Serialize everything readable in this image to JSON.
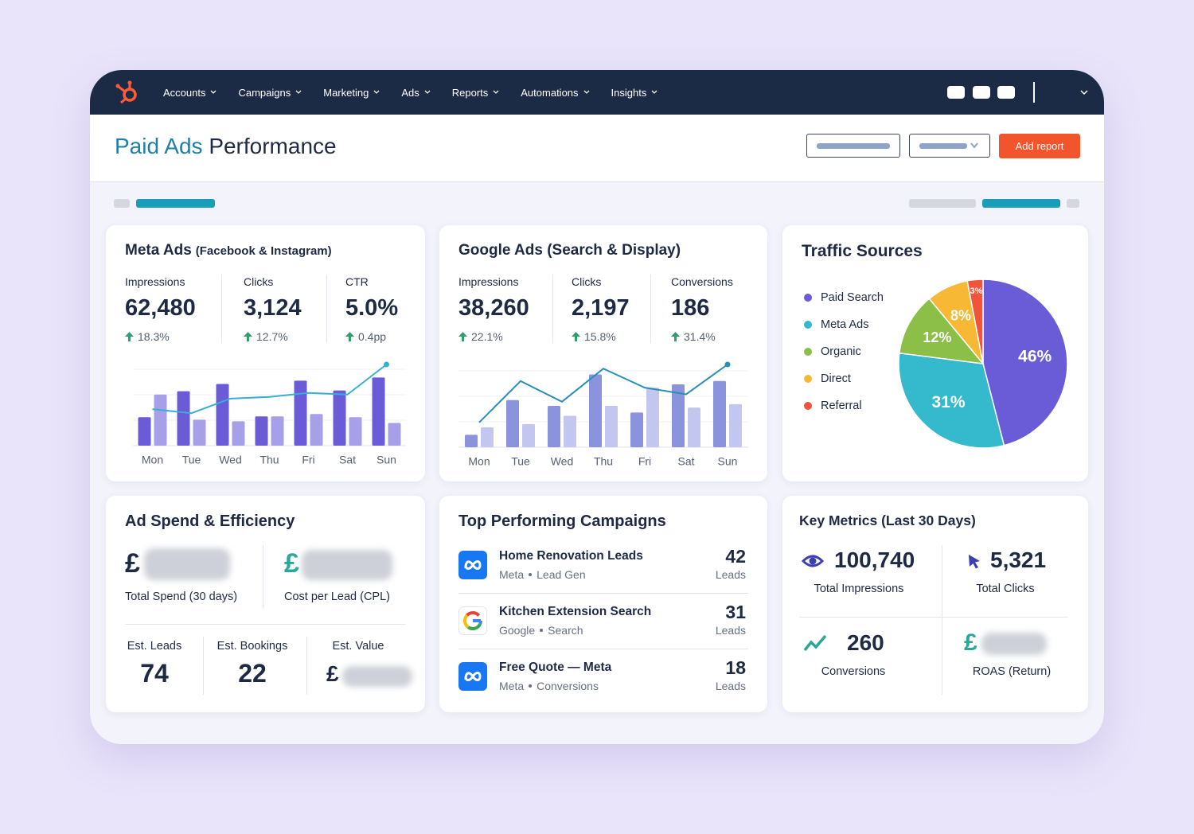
{
  "nav": {
    "items": [
      "Accounts",
      "Campaigns",
      "Marketing",
      "Ads",
      "Reports",
      "Automations",
      "Insights"
    ]
  },
  "header": {
    "title_highlight": "Paid Ads",
    "title_rest": "Performance",
    "add_button": "Add report"
  },
  "currency": "£",
  "meta_card": {
    "title": "Meta Ads",
    "subtitle": "(Facebook & Instagram)",
    "metrics": [
      {
        "label": "Impressions",
        "value": "62,480",
        "change": "18.3%"
      },
      {
        "label": "Clicks",
        "value": "3,124",
        "change": "12.7%"
      },
      {
        "label": "CTR",
        "value": "5.0%",
        "change": "0.4pp"
      }
    ]
  },
  "google_card": {
    "title": "Google Ads (Search & Display)",
    "metrics": [
      {
        "label": "Impressions",
        "value": "38,260",
        "change": "22.1%"
      },
      {
        "label": "Clicks",
        "value": "2,197",
        "change": "15.8%"
      },
      {
        "label": "Conversions",
        "value": "186",
        "change": "31.4%"
      }
    ]
  },
  "traffic_card": {
    "title": "Traffic Sources"
  },
  "spend_card": {
    "title": "Ad Spend & Efficiency",
    "total_spend_label": "Total Spend (30 days)",
    "cpl_label": "Cost per Lead (CPL)",
    "estimates": [
      {
        "label": "Est. Leads",
        "value": "74"
      },
      {
        "label": "Est. Bookings",
        "value": "22"
      },
      {
        "label": "Est. Value"
      }
    ]
  },
  "campaigns_card": {
    "title": "Top Performing Campaigns",
    "rows": [
      {
        "name": "Home Renovation Leads",
        "platform": "Meta",
        "kind": "Lead Gen",
        "value": "42",
        "unit": "Leads",
        "icon": "meta"
      },
      {
        "name": "Kitchen Extension Search",
        "platform": "Google",
        "kind": "Search",
        "value": "31",
        "unit": "Leads",
        "icon": "google"
      },
      {
        "name": "Free Quote — Meta",
        "platform": "Meta",
        "kind": "Conversions",
        "value": "18",
        "unit": "Leads",
        "icon": "meta"
      }
    ]
  },
  "metrics_card": {
    "title": "Key Metrics (Last 30 Days)",
    "items": [
      {
        "value": "100,740",
        "label": "Total Impressions",
        "icon": "eye"
      },
      {
        "value": "5,321",
        "label": "Total Clicks",
        "icon": "cursor"
      },
      {
        "value": "260",
        "label": "Conversions",
        "icon": "trend"
      },
      {
        "label": "ROAS (Return)",
        "icon": "currency"
      }
    ]
  },
  "chart_data": [
    {
      "type": "combo",
      "categories": [
        "Mon",
        "Tue",
        "Wed",
        "Thu",
        "Fri",
        "Sat",
        "Sun"
      ],
      "series": [
        {
          "type": "bar",
          "color": "#6b5bd6",
          "values": [
            35,
            67,
            76,
            36,
            80,
            68,
            84
          ]
        },
        {
          "type": "bar",
          "color": "#a79fe8",
          "values": [
            63,
            32,
            30,
            36,
            39,
            35,
            28
          ]
        },
        {
          "type": "line",
          "color": "#36b0d2",
          "values": [
            45,
            40,
            58,
            60,
            65,
            63,
            100
          ]
        }
      ]
    },
    {
      "type": "combo",
      "categories": [
        "Mon",
        "Tue",
        "Wed",
        "Thu",
        "Fri",
        "Sat",
        "Sun"
      ],
      "series": [
        {
          "type": "bar",
          "color": "#8a93dc",
          "values": [
            15,
            57,
            50,
            88,
            42,
            76,
            80
          ]
        },
        {
          "type": "bar",
          "color": "#c3c7ef",
          "values": [
            24,
            28,
            38,
            50,
            72,
            48,
            52
          ]
        },
        {
          "type": "line",
          "color": "#2a8fb8",
          "values": [
            30,
            80,
            55,
            95,
            72,
            64,
            100
          ]
        }
      ]
    },
    {
      "type": "pie",
      "categories": [
        "Paid Search",
        "Meta Ads",
        "Organic",
        "Direct",
        "Referral"
      ],
      "values": [
        46,
        31,
        12,
        8,
        3
      ],
      "value_labels": [
        "46%",
        "31%",
        "12%",
        "8%",
        "3%"
      ],
      "colors": [
        "#6a5bd6",
        "#35b9cc",
        "#8cbf47",
        "#f7b935",
        "#f0553b"
      ]
    }
  ]
}
